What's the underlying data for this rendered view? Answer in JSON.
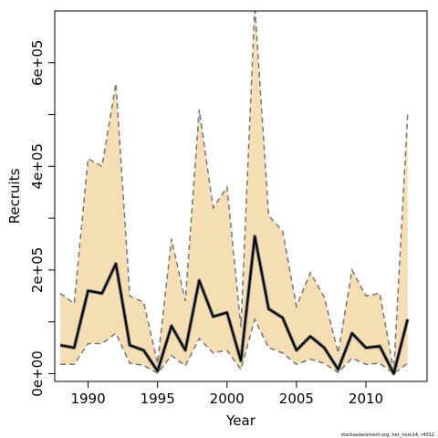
{
  "chart_data": {
    "type": "line",
    "xlabel": "Year",
    "ylabel": "Recruits",
    "xlim": [
      1987.6,
      2014.4
    ],
    "ylim": [
      -15000,
      700000
    ],
    "x_ticks": [
      1990,
      1995,
      2000,
      2005,
      2010
    ],
    "x_tick_labels": [
      "1990",
      "1995",
      "2000",
      "2005",
      "2010"
    ],
    "y_ticks": [
      0,
      100000,
      200000,
      300000,
      400000,
      500000,
      600000
    ],
    "y_tick_labels": [
      "0e+00",
      "",
      "2e+05",
      "",
      "4e+05",
      "",
      "6e+05"
    ],
    "grid": false,
    "footnote": "stockassessment.org, her_noss14, r4012",
    "colors": {
      "band": "#f5deb3",
      "estimate": "#000000",
      "estimate_outline": "#7f7f7f",
      "interval": "#777777"
    },
    "x": [
      1988,
      1989,
      1990,
      1991,
      1992,
      1993,
      1994,
      1995,
      1996,
      1997,
      1998,
      1999,
      2000,
      2001,
      2002,
      2003,
      2004,
      2005,
      2006,
      2007,
      2008,
      2009,
      2010,
      2011,
      2012,
      2013
    ],
    "series": [
      {
        "role": "estimate",
        "values": [
          55000,
          50000,
          160000,
          155000,
          212000,
          55000,
          45000,
          5000,
          92000,
          45000,
          180000,
          110000,
          118000,
          25000,
          265000,
          125000,
          108000,
          45000,
          72000,
          50000,
          8000,
          78000,
          50000,
          53000,
          0,
          105000
        ]
      },
      {
        "role": "interval-upper",
        "values": [
          155000,
          135000,
          415000,
          400000,
          560000,
          150000,
          138000,
          20000,
          260000,
          140000,
          510000,
          320000,
          360000,
          90000,
          710000,
          305000,
          275000,
          130000,
          195000,
          148000,
          40000,
          200000,
          150000,
          155000,
          5000,
          500000
        ]
      },
      {
        "role": "interval-lower",
        "values": [
          18000,
          18000,
          58000,
          58000,
          78000,
          20000,
          16000,
          1000,
          35000,
          15000,
          68000,
          40000,
          45000,
          8000,
          105000,
          50000,
          40000,
          18000,
          28000,
          20000,
          2000,
          30000,
          18000,
          20000,
          0,
          20000
        ]
      }
    ]
  }
}
